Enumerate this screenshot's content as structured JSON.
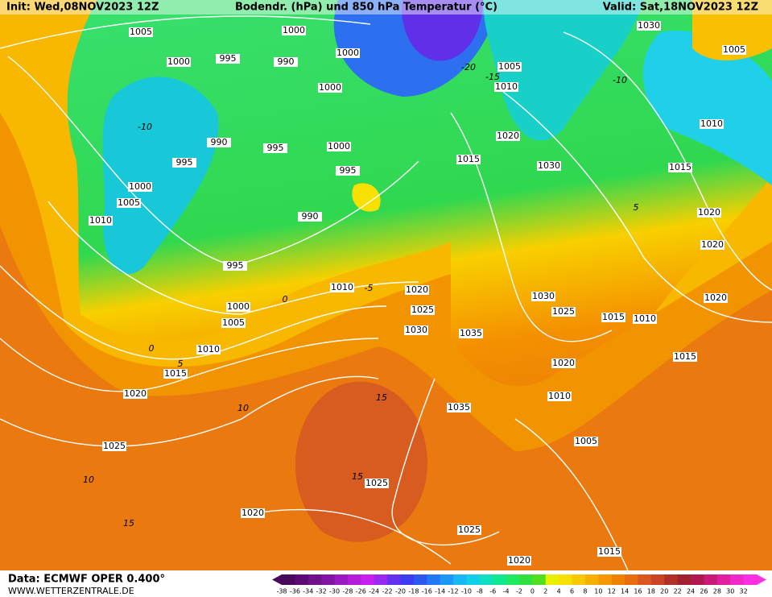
{
  "header": {
    "init": "Init: Wed,08NOV2023 12Z",
    "title": "Bodendr. (hPa) und 850 hPa Temperatur (°C)",
    "valid": "Valid: Sat,18NOV2023 12Z"
  },
  "footer": {
    "data_source": "Data: ECMWF OPER 0.400°",
    "website": "WWW.WETTERZENTRALE.DE"
  },
  "isobar_labels": [
    "1005",
    "1000",
    "1000",
    "995",
    "990",
    "1000",
    "1005",
    "1010",
    "1000",
    "990",
    "995",
    "1000",
    "995",
    "995",
    "1000",
    "1005",
    "1010",
    "990",
    "1020",
    "1015",
    "1030",
    "995",
    "1010",
    "1020",
    "1025",
    "1030",
    "1035",
    "1000",
    "1005",
    "1010",
    "1015",
    "1020",
    "1025",
    "1030",
    "1025",
    "1015",
    "1010",
    "1020",
    "1010",
    "1005",
    "1035",
    "1025",
    "1020",
    "1025",
    "1020",
    "1015",
    "1030",
    "1005",
    "1010",
    "1015",
    "1020",
    "1020",
    "1020",
    "1015"
  ],
  "temperature_labels": [
    "-20",
    "-15",
    "-10",
    "-10",
    "-5",
    "0",
    "0",
    "5",
    "5",
    "10",
    "10",
    "15",
    "15",
    "15"
  ],
  "color_scale": {
    "labels": [
      -38,
      -36,
      -34,
      -32,
      -30,
      -28,
      -26,
      -24,
      -22,
      -20,
      -18,
      -16,
      -14,
      -12,
      -10,
      -8,
      -6,
      -4,
      -2,
      0,
      2,
      4,
      6,
      8,
      10,
      12,
      14,
      16,
      18,
      20,
      22,
      24,
      26,
      28,
      30,
      32
    ],
    "colors": [
      "#4a0a5c",
      "#5c0a74",
      "#70108c",
      "#8414a4",
      "#9c18c0",
      "#b41cd8",
      "#c81ef0",
      "#9a28f0",
      "#6430f0",
      "#3c3cf0",
      "#2c58f0",
      "#2478f4",
      "#1c98f4",
      "#18b8f4",
      "#10d0e8",
      "#10e0c0",
      "#10e890",
      "#20e860",
      "#30e040",
      "#50e020",
      "#e8f000",
      "#f8e000",
      "#f8c800",
      "#f8b000",
      "#f89800",
      "#f08000",
      "#e86c10",
      "#d85820",
      "#c84424",
      "#b03028",
      "#a02030",
      "#b01850",
      "#c81c78",
      "#e020a0",
      "#f028c8",
      "#f830e0"
    ]
  }
}
